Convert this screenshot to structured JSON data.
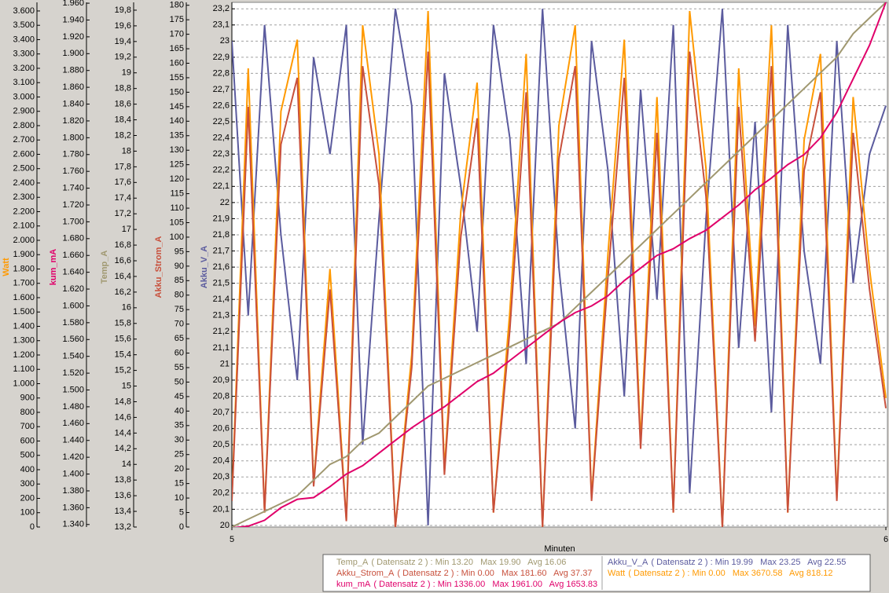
{
  "chart_data": {
    "type": "line",
    "x_label": "Minuten",
    "xlim": [
      5,
      6
    ],
    "xticks": [
      5,
      6
    ],
    "grid": true,
    "x": [
      5,
      5.025,
      5.05,
      5.075,
      5.1,
      5.125,
      5.15,
      5.175,
      5.2,
      5.225,
      5.25,
      5.275,
      5.3,
      5.325,
      5.35,
      5.375,
      5.4,
      5.425,
      5.45,
      5.475,
      5.5,
      5.525,
      5.55,
      5.575,
      5.6,
      5.625,
      5.65,
      5.675,
      5.7,
      5.725,
      5.75,
      5.775,
      5.8,
      5.825,
      5.85,
      5.875,
      5.9,
      5.925,
      5.95,
      5.975,
      6
    ],
    "series": [
      {
        "name": "Watt",
        "color": "#ff9900",
        "legend_text": "( Datensatz 2 ) : Min 0.00   Max 3670.58   Avg 818.12",
        "ylim": [
          0,
          3660
        ],
        "yticks": [
          0,
          100,
          200,
          300,
          400,
          500,
          600,
          700,
          800,
          900,
          {
            "value": 1000,
            "label": "1.000"
          },
          {
            "value": 1100,
            "label": "1.100"
          },
          {
            "value": 1200,
            "label": "1.200"
          },
          {
            "value": 1300,
            "label": "1.300"
          },
          {
            "value": 1400,
            "label": "1.400"
          },
          {
            "value": 1500,
            "label": "1.500"
          },
          {
            "value": 1600,
            "label": "1.600"
          },
          {
            "value": 1700,
            "label": "1.700"
          },
          {
            "value": 1800,
            "label": "1.800"
          },
          {
            "value": 1900,
            "label": "1.900"
          },
          {
            "value": 2000,
            "label": "2.000"
          },
          {
            "value": 2100,
            "label": "2.100"
          },
          {
            "value": 2200,
            "label": "2.200"
          },
          {
            "value": 2300,
            "label": "2.300"
          },
          {
            "value": 2400,
            "label": "2.400"
          },
          {
            "value": 2500,
            "label": "2.500"
          },
          {
            "value": 2600,
            "label": "2.600"
          },
          {
            "value": 2700,
            "label": "2.700"
          },
          {
            "value": 2800,
            "label": "2.800"
          },
          {
            "value": 2900,
            "label": "2.900"
          },
          {
            "value": 3000,
            "label": "3.000"
          },
          {
            "value": 3100,
            "label": "3.100"
          },
          {
            "value": 3200,
            "label": "3.200"
          },
          {
            "value": 3300,
            "label": "3.300"
          },
          {
            "value": 3400,
            "label": "3.400"
          },
          {
            "value": 3500,
            "label": "3.500"
          },
          {
            "value": 3600,
            "label": "3.600"
          }
        ],
        "values": [
          200,
          3200,
          100,
          2900,
          3400,
          300,
          1800,
          50,
          3500,
          2600,
          0,
          1200,
          3600,
          400,
          2200,
          3100,
          100,
          1500,
          3300,
          0,
          2800,
          3500,
          200,
          1900,
          3400,
          600,
          3000,
          100,
          3600,
          2500,
          0,
          3200,
          1400,
          3500,
          100,
          2700,
          3300,
          200,
          3000,
          1800,
          900
        ]
      },
      {
        "name": "kum_mA",
        "color": "#e0006a",
        "legend_text": "( Datensatz 2 ) : Min 1336.00   Max 1961.00   Avg 1653.83",
        "ylim": [
          1337,
          1961
        ],
        "yticks": [
          {
            "value": 1340,
            "label": "1.340"
          },
          {
            "value": 1360,
            "label": "1.360"
          },
          {
            "value": 1380,
            "label": "1.380"
          },
          {
            "value": 1400,
            "label": "1.400"
          },
          {
            "value": 1420,
            "label": "1.420"
          },
          {
            "value": 1440,
            "label": "1.440"
          },
          {
            "value": 1460,
            "label": "1.460"
          },
          {
            "value": 1480,
            "label": "1.480"
          },
          {
            "value": 1500,
            "label": "1.500"
          },
          {
            "value": 1520,
            "label": "1.520"
          },
          {
            "value": 1540,
            "label": "1.540"
          },
          {
            "value": 1560,
            "label": "1.560"
          },
          {
            "value": 1580,
            "label": "1.580"
          },
          {
            "value": 1600,
            "label": "1.600"
          },
          {
            "value": 1620,
            "label": "1.620"
          },
          {
            "value": 1640,
            "label": "1.640"
          },
          {
            "value": 1660,
            "label": "1.660"
          },
          {
            "value": 1680,
            "label": "1.680"
          },
          {
            "value": 1700,
            "label": "1.700"
          },
          {
            "value": 1720,
            "label": "1.720"
          },
          {
            "value": 1740,
            "label": "1.740"
          },
          {
            "value": 1760,
            "label": "1.760"
          },
          {
            "value": 1780,
            "label": "1.780"
          },
          {
            "value": 1800,
            "label": "1.800"
          },
          {
            "value": 1820,
            "label": "1.820"
          },
          {
            "value": 1840,
            "label": "1.840"
          },
          {
            "value": 1860,
            "label": "1.860"
          },
          {
            "value": 1880,
            "label": "1.880"
          },
          {
            "value": 1900,
            "label": "1.900"
          },
          {
            "value": 1920,
            "label": "1.920"
          },
          {
            "value": 1940,
            "label": "1.940"
          },
          {
            "value": 1960,
            "label": "1.960"
          }
        ],
        "values": [
          1336,
          1338,
          1345,
          1360,
          1370,
          1372,
          1385,
          1400,
          1410,
          1425,
          1440,
          1455,
          1468,
          1480,
          1495,
          1510,
          1520,
          1535,
          1550,
          1565,
          1580,
          1592,
          1600,
          1612,
          1630,
          1645,
          1660,
          1668,
          1680,
          1690,
          1705,
          1720,
          1738,
          1752,
          1768,
          1780,
          1800,
          1830,
          1870,
          1910,
          1961
        ]
      },
      {
        "name": "Temp_A",
        "color": "#a09870",
        "legend_text": "( Datensatz 2 ) : Min 13.20   Max 19.90   Avg 16.06",
        "ylim": [
          13.2,
          19.9
        ],
        "yticks": [
          {
            "value": 13.2,
            "label": "13,2"
          },
          {
            "value": 13.4,
            "label": "13,4"
          },
          {
            "value": 13.6,
            "label": "13,6"
          },
          {
            "value": 13.8,
            "label": "13,8"
          },
          14,
          {
            "value": 14.2,
            "label": "14,2"
          },
          {
            "value": 14.4,
            "label": "14,4"
          },
          {
            "value": 14.6,
            "label": "14,6"
          },
          {
            "value": 14.8,
            "label": "14,8"
          },
          15,
          {
            "value": 15.2,
            "label": "15,2"
          },
          {
            "value": 15.4,
            "label": "15,4"
          },
          {
            "value": 15.6,
            "label": "15,6"
          },
          {
            "value": 15.8,
            "label": "15,8"
          },
          16,
          {
            "value": 16.2,
            "label": "16,2"
          },
          {
            "value": 16.4,
            "label": "16,4"
          },
          {
            "value": 16.6,
            "label": "16,6"
          },
          {
            "value": 16.8,
            "label": "16,8"
          },
          17,
          {
            "value": 17.2,
            "label": "17,2"
          },
          {
            "value": 17.4,
            "label": "17,4"
          },
          {
            "value": 17.6,
            "label": "17,6"
          },
          {
            "value": 17.8,
            "label": "17,8"
          },
          18,
          {
            "value": 18.2,
            "label": "18,2"
          },
          {
            "value": 18.4,
            "label": "18,4"
          },
          {
            "value": 18.6,
            "label": "18,6"
          },
          {
            "value": 18.8,
            "label": "18,8"
          },
          19,
          {
            "value": 19.2,
            "label": "19,2"
          },
          {
            "value": 19.4,
            "label": "19,4"
          },
          {
            "value": 19.6,
            "label": "19,6"
          },
          {
            "value": 19.8,
            "label": "19,8"
          }
        ],
        "values": [
          13.2,
          13.3,
          13.4,
          13.5,
          13.6,
          13.8,
          14.0,
          14.1,
          14.3,
          14.4,
          14.6,
          14.8,
          15.0,
          15.1,
          15.2,
          15.3,
          15.4,
          15.5,
          15.6,
          15.7,
          15.8,
          16.0,
          16.2,
          16.4,
          16.6,
          16.8,
          17.0,
          17.2,
          17.4,
          17.6,
          17.8,
          18.0,
          18.2,
          18.4,
          18.6,
          18.8,
          19.0,
          19.2,
          19.5,
          19.7,
          19.9
        ]
      },
      {
        "name": "Akku_Strom_A",
        "color": "#c8503c",
        "legend_text": "( Datensatz 2 ) : Min 0.00   Max 181.60   Avg 37.37",
        "ylim": [
          0,
          181
        ],
        "yticks": [
          0,
          5,
          10,
          15,
          20,
          25,
          30,
          35,
          40,
          45,
          50,
          55,
          60,
          65,
          70,
          75,
          80,
          85,
          90,
          95,
          100,
          105,
          110,
          115,
          120,
          125,
          130,
          135,
          140,
          145,
          150,
          155,
          160,
          165,
          170,
          175,
          180
        ],
        "values": [
          9,
          145,
          5,
          132,
          155,
          14,
          82,
          2,
          159,
          118,
          0,
          55,
          164,
          18,
          100,
          141,
          5,
          68,
          150,
          0,
          127,
          159,
          9,
          86,
          155,
          27,
          136,
          5,
          164,
          114,
          0,
          145,
          64,
          159,
          5,
          123,
          150,
          9,
          136,
          82,
          41
        ]
      },
      {
        "name": "Akku_V_A",
        "color": "#5b5b9e",
        "legend_text": "( Datensatz 2 ) : Min 19.99   Max 23.25   Avg 22.55",
        "ylim": [
          19.99,
          23.24
        ],
        "yticks": [
          20,
          {
            "value": 20.1,
            "label": "20,1"
          },
          {
            "value": 20.2,
            "label": "20,2"
          },
          {
            "value": 20.3,
            "label": "20,3"
          },
          {
            "value": 20.4,
            "label": "20,4"
          },
          {
            "value": 20.5,
            "label": "20,5"
          },
          {
            "value": 20.6,
            "label": "20,6"
          },
          {
            "value": 20.7,
            "label": "20,7"
          },
          {
            "value": 20.8,
            "label": "20,8"
          },
          {
            "value": 20.9,
            "label": "20,9"
          },
          21,
          {
            "value": 21.1,
            "label": "21,1"
          },
          {
            "value": 21.2,
            "label": "21,2"
          },
          {
            "value": 21.3,
            "label": "21,3"
          },
          {
            "value": 21.4,
            "label": "21,4"
          },
          {
            "value": 21.5,
            "label": "21,5"
          },
          {
            "value": 21.6,
            "label": "21,6"
          },
          {
            "value": 21.7,
            "label": "21,7"
          },
          {
            "value": 21.8,
            "label": "21,8"
          },
          {
            "value": 21.9,
            "label": "21,9"
          },
          22,
          {
            "value": 22.1,
            "label": "22,1"
          },
          {
            "value": 22.2,
            "label": "22,2"
          },
          {
            "value": 22.3,
            "label": "22,3"
          },
          {
            "value": 22.4,
            "label": "22,4"
          },
          {
            "value": 22.5,
            "label": "22,5"
          },
          {
            "value": 22.6,
            "label": "22,6"
          },
          {
            "value": 22.7,
            "label": "22,7"
          },
          {
            "value": 22.8,
            "label": "22,8"
          },
          {
            "value": 22.9,
            "label": "22,9"
          },
          23,
          {
            "value": 23.1,
            "label": "23,1"
          },
          {
            "value": 23.2,
            "label": "23,2"
          }
        ],
        "values": [
          23.0,
          21.3,
          23.1,
          21.8,
          20.9,
          22.9,
          22.3,
          23.1,
          20.5,
          21.9,
          23.2,
          22.6,
          20.0,
          22.8,
          22.1,
          21.2,
          23.1,
          22.4,
          21.0,
          23.2,
          21.6,
          20.6,
          23.0,
          22.2,
          20.8,
          22.7,
          21.4,
          23.1,
          20.2,
          21.9,
          23.2,
          21.1,
          22.5,
          20.7,
          23.1,
          21.7,
          21.0,
          23.0,
          21.5,
          22.3,
          22.6
        ]
      }
    ]
  }
}
